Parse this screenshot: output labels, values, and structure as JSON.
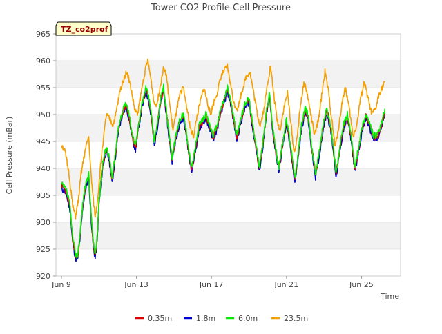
{
  "chart_data": {
    "type": "line",
    "title": "Tower CO2 Profile Cell Pressure",
    "badge": "TZ_co2prof",
    "xlabel": "Time",
    "ylabel": "Cell Pressure (mBar)",
    "ylim": [
      920,
      965
    ],
    "yticks": [
      920,
      925,
      930,
      935,
      940,
      945,
      950,
      955,
      960,
      965
    ],
    "xlim": [
      0,
      18
    ],
    "xticks": [
      {
        "day": 0,
        "label": "Jun 9"
      },
      {
        "day": 4,
        "label": "Jun 13"
      },
      {
        "day": 8,
        "label": "Jun 17"
      },
      {
        "day": 12,
        "label": "Jun 21"
      },
      {
        "day": 16,
        "label": "Jun 25"
      }
    ],
    "grid": "horizontal bands",
    "legend_position": "bottom",
    "x_unit": "days since Jun 9",
    "series": [
      {
        "name": "0.35m",
        "color": "#dd0000"
      },
      {
        "name": "1.8m",
        "color": "#0000cc"
      },
      {
        "name": "6.0m",
        "color": "#00ee00"
      },
      {
        "name": "23.5m",
        "color": "#f5a000"
      }
    ],
    "profile_6m": [
      [
        0.0,
        937
      ],
      [
        0.25,
        936
      ],
      [
        0.45,
        933
      ],
      [
        0.6,
        927
      ],
      [
        0.75,
        924
      ],
      [
        0.85,
        923.5
      ],
      [
        1.0,
        928
      ],
      [
        1.15,
        934
      ],
      [
        1.3,
        937
      ],
      [
        1.45,
        939
      ],
      [
        1.55,
        933
      ],
      [
        1.7,
        926
      ],
      [
        1.8,
        924
      ],
      [
        1.9,
        927
      ],
      [
        2.0,
        934
      ],
      [
        2.2,
        941
      ],
      [
        2.4,
        944
      ],
      [
        2.55,
        942
      ],
      [
        2.7,
        938
      ],
      [
        2.85,
        942
      ],
      [
        3.05,
        948
      ],
      [
        3.3,
        951
      ],
      [
        3.45,
        952
      ],
      [
        3.6,
        950
      ],
      [
        3.8,
        946
      ],
      [
        3.95,
        944
      ],
      [
        4.1,
        948
      ],
      [
        4.3,
        952
      ],
      [
        4.5,
        955
      ],
      [
        4.6,
        954
      ],
      [
        4.8,
        950
      ],
      [
        4.95,
        945
      ],
      [
        5.1,
        948
      ],
      [
        5.3,
        953
      ],
      [
        5.45,
        955
      ],
      [
        5.55,
        952
      ],
      [
        5.75,
        946
      ],
      [
        5.9,
        942
      ],
      [
        6.1,
        946
      ],
      [
        6.3,
        949
      ],
      [
        6.5,
        950
      ],
      [
        6.65,
        947
      ],
      [
        6.85,
        942
      ],
      [
        6.95,
        940
      ],
      [
        7.15,
        944
      ],
      [
        7.35,
        948
      ],
      [
        7.55,
        949
      ],
      [
        7.7,
        950
      ],
      [
        7.9,
        948
      ],
      [
        8.1,
        946
      ],
      [
        8.3,
        948
      ],
      [
        8.5,
        951
      ],
      [
        8.7,
        953
      ],
      [
        8.85,
        955
      ],
      [
        9.0,
        953
      ],
      [
        9.2,
        949
      ],
      [
        9.35,
        946
      ],
      [
        9.55,
        949
      ],
      [
        9.8,
        952
      ],
      [
        10.0,
        953
      ],
      [
        10.2,
        948
      ],
      [
        10.4,
        944
      ],
      [
        10.55,
        940
      ],
      [
        10.75,
        945
      ],
      [
        10.95,
        951
      ],
      [
        11.1,
        954
      ],
      [
        11.25,
        948
      ],
      [
        11.45,
        943
      ],
      [
        11.6,
        940
      ],
      [
        11.8,
        945
      ],
      [
        12.0,
        949
      ],
      [
        12.1,
        947
      ],
      [
        12.3,
        942
      ],
      [
        12.45,
        938
      ],
      [
        12.6,
        942
      ],
      [
        12.8,
        948
      ],
      [
        13.0,
        951
      ],
      [
        13.15,
        950
      ],
      [
        13.35,
        944
      ],
      [
        13.55,
        939
      ],
      [
        13.75,
        943
      ],
      [
        13.95,
        948
      ],
      [
        14.15,
        951
      ],
      [
        14.35,
        948
      ],
      [
        14.5,
        944
      ],
      [
        14.65,
        939
      ],
      [
        14.85,
        944
      ],
      [
        15.05,
        948
      ],
      [
        15.25,
        950
      ],
      [
        15.45,
        946
      ],
      [
        15.65,
        940
      ],
      [
        15.85,
        944
      ],
      [
        16.05,
        948
      ],
      [
        16.25,
        950
      ],
      [
        16.45,
        948
      ],
      [
        16.65,
        946
      ],
      [
        16.85,
        946
      ],
      [
        17.05,
        948
      ],
      [
        17.25,
        951
      ]
    ],
    "profile_23m": [
      [
        0.0,
        944.5
      ],
      [
        0.2,
        943
      ],
      [
        0.4,
        939
      ],
      [
        0.6,
        933
      ],
      [
        0.75,
        931
      ],
      [
        0.9,
        934
      ],
      [
        1.05,
        939
      ],
      [
        1.25,
        943
      ],
      [
        1.45,
        946
      ],
      [
        1.55,
        940
      ],
      [
        1.7,
        934
      ],
      [
        1.8,
        931
      ],
      [
        1.95,
        935
      ],
      [
        2.15,
        943
      ],
      [
        2.4,
        950
      ],
      [
        2.6,
        949
      ],
      [
        2.75,
        948
      ],
      [
        2.9,
        950
      ],
      [
        3.1,
        954
      ],
      [
        3.35,
        957
      ],
      [
        3.5,
        958
      ],
      [
        3.7,
        955
      ],
      [
        3.9,
        951
      ],
      [
        4.05,
        950
      ],
      [
        4.25,
        954
      ],
      [
        4.45,
        958
      ],
      [
        4.6,
        960
      ],
      [
        4.75,
        957
      ],
      [
        4.95,
        952
      ],
      [
        5.1,
        952
      ],
      [
        5.3,
        956
      ],
      [
        5.45,
        959
      ],
      [
        5.6,
        957
      ],
      [
        5.8,
        951
      ],
      [
        5.95,
        947
      ],
      [
        6.15,
        951
      ],
      [
        6.35,
        954
      ],
      [
        6.5,
        955
      ],
      [
        6.7,
        951
      ],
      [
        6.9,
        947
      ],
      [
        7.05,
        946
      ],
      [
        7.25,
        950
      ],
      [
        7.45,
        953
      ],
      [
        7.6,
        955
      ],
      [
        7.8,
        952
      ],
      [
        7.95,
        950
      ],
      [
        8.1,
        952
      ],
      [
        8.3,
        954
      ],
      [
        8.5,
        957
      ],
      [
        8.65,
        958
      ],
      [
        8.85,
        959
      ],
      [
        9.0,
        956
      ],
      [
        9.2,
        952
      ],
      [
        9.4,
        951
      ],
      [
        9.6,
        954
      ],
      [
        9.85,
        957
      ],
      [
        10.05,
        958
      ],
      [
        10.25,
        954
      ],
      [
        10.45,
        950
      ],
      [
        10.6,
        948
      ],
      [
        10.8,
        951
      ],
      [
        11.0,
        956
      ],
      [
        11.15,
        959
      ],
      [
        11.35,
        953
      ],
      [
        11.5,
        949
      ],
      [
        11.65,
        947
      ],
      [
        11.85,
        951
      ],
      [
        12.05,
        954
      ],
      [
        12.25,
        948
      ],
      [
        12.4,
        943
      ],
      [
        12.55,
        945
      ],
      [
        12.75,
        952
      ],
      [
        12.95,
        956
      ],
      [
        13.1,
        954
      ],
      [
        13.3,
        950
      ],
      [
        13.5,
        946
      ],
      [
        13.7,
        949
      ],
      [
        13.9,
        954
      ],
      [
        14.05,
        958
      ],
      [
        14.25,
        954
      ],
      [
        14.45,
        948
      ],
      [
        14.6,
        944
      ],
      [
        14.8,
        948
      ],
      [
        15.0,
        953
      ],
      [
        15.15,
        955
      ],
      [
        15.35,
        951
      ],
      [
        15.55,
        946
      ],
      [
        15.75,
        948
      ],
      [
        15.95,
        953
      ],
      [
        16.15,
        956
      ],
      [
        16.35,
        953
      ],
      [
        16.55,
        950
      ],
      [
        16.75,
        951
      ],
      [
        16.95,
        954
      ],
      [
        17.1,
        955
      ],
      [
        17.25,
        956
      ]
    ]
  }
}
